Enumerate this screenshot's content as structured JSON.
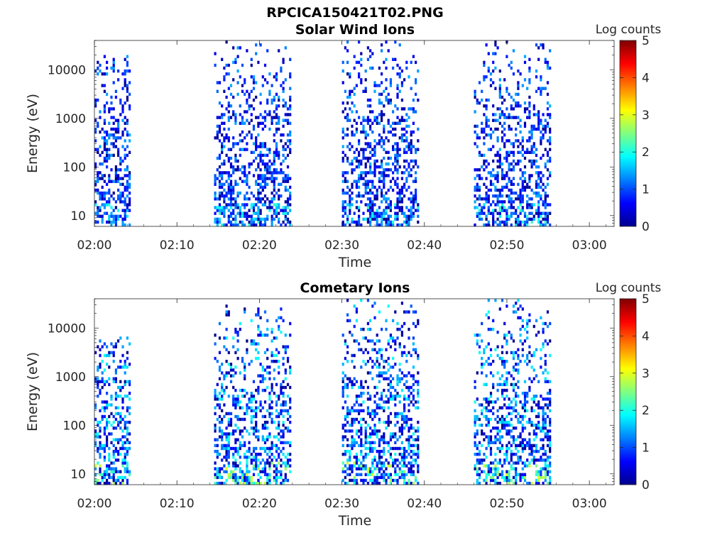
{
  "figure_title": "RPCICA150421T02.PNG",
  "chart_data": [
    {
      "type": "heatmap",
      "title": "Solar Wind Ions",
      "xlabel": "Time",
      "ylabel": "Energy (eV)",
      "x_ticks": [
        "02:00",
        "02:10",
        "02:20",
        "02:30",
        "02:40",
        "02:50",
        "03:00"
      ],
      "y_ticks": [
        "10",
        "100",
        "1000",
        "10000"
      ],
      "y_scale": "log",
      "ylim": [
        6,
        40000
      ],
      "xlim": [
        "02:00",
        "03:03"
      ],
      "colorbar": {
        "label": "Log counts",
        "ticks": [
          "0",
          "1",
          "2",
          "3",
          "4",
          "5"
        ],
        "range": [
          0,
          5
        ],
        "colormap": "jet"
      },
      "activity_intervals": [
        {
          "start": "02:00",
          "end": "02:04.5",
          "e_min": 6,
          "e_max": 20000
        },
        {
          "start": "02:14.5",
          "end": "02:24",
          "e_min": 6,
          "e_max": 35000
        },
        {
          "start": "02:30",
          "end": "02:39.5",
          "e_min": 6,
          "e_max": 35000
        },
        {
          "start": "02:46",
          "end": "02:55.5",
          "e_min": 6,
          "e_max": 35000
        }
      ],
      "typical_log_counts": [
        0,
        1.5
      ],
      "max_log_counts": 2.2
    },
    {
      "type": "heatmap",
      "title": "Cometary Ions",
      "xlabel": "Time",
      "ylabel": "Energy (eV)",
      "x_ticks": [
        "02:00",
        "02:10",
        "02:20",
        "02:30",
        "02:40",
        "02:50",
        "03:00"
      ],
      "y_ticks": [
        "10",
        "100",
        "1000",
        "10000"
      ],
      "y_scale": "log",
      "ylim": [
        6,
        40000
      ],
      "xlim": [
        "02:00",
        "03:03"
      ],
      "colorbar": {
        "label": "Log counts",
        "ticks": [
          "0",
          "1",
          "2",
          "3",
          "4",
          "5"
        ],
        "range": [
          0,
          5
        ],
        "colormap": "jet"
      },
      "activity_intervals": [
        {
          "start": "02:00",
          "end": "02:04.5",
          "e_min": 6,
          "e_max": 6000
        },
        {
          "start": "02:14.5",
          "end": "02:24",
          "e_min": 6,
          "e_max": 30000
        },
        {
          "start": "02:30",
          "end": "02:39.5",
          "e_min": 6,
          "e_max": 35000
        },
        {
          "start": "02:46",
          "end": "02:55.5",
          "e_min": 6,
          "e_max": 35000
        }
      ],
      "typical_log_counts": [
        0,
        2
      ],
      "max_log_counts": 3
    }
  ]
}
